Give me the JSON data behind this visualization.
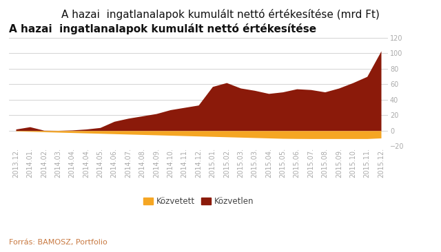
{
  "title_bold": "A hazai  ingatlanalapok kumulált nettó értékesítése",
  "title_normal": " (mrd Ft)",
  "source": "Forrás: BAMOSZ, Portfolio",
  "legend_items": [
    "Közvetett",
    "Közvetlen"
  ],
  "legend_colors": [
    "#f5a623",
    "#8b1a0a"
  ],
  "ylim": [
    -20,
    120
  ],
  "yticks": [
    -20,
    0,
    20,
    40,
    60,
    80,
    100,
    120
  ],
  "background_color": "#ffffff",
  "labels": [
    "2013.12.",
    "2014.01.",
    "2014.02.",
    "2014.03.",
    "2014.04.",
    "2014.04.",
    "2014.05.",
    "2014.06.",
    "2014.07.",
    "2014.08.",
    "2014.09.",
    "2014.10.",
    "2014.11.",
    "2014.12.",
    "2015.01.",
    "2015.02.",
    "2015.03.",
    "2015.03.",
    "2015.04.",
    "2015.05.",
    "2015.06.",
    "2015.07.",
    "2015.08.",
    "2015.09.",
    "2015.10.",
    "2015.11.",
    "2015.12."
  ],
  "kozvetlen": [
    2.0,
    5.0,
    0.5,
    0.3,
    0.8,
    2.0,
    4.0,
    12.0,
    16.0,
    19.0,
    22.0,
    27.0,
    30.0,
    33.0,
    57.0,
    62.0,
    55.0,
    52.0,
    48.0,
    50.0,
    54.0,
    53.0,
    50.0,
    55.0,
    62.0,
    70.0,
    103.0
  ],
  "kozvetett": [
    -0.5,
    -1.0,
    -1.5,
    -2.0,
    -2.5,
    -3.0,
    -3.5,
    -4.0,
    -4.5,
    -5.0,
    -5.5,
    -6.0,
    -6.5,
    -7.0,
    -7.5,
    -8.0,
    -8.5,
    -9.0,
    -9.5,
    -10.0,
    -10.2,
    -10.3,
    -10.3,
    -10.3,
    -10.3,
    -10.3,
    -9.5
  ],
  "grid_color": "#cccccc",
  "tick_color": "#aaaaaa",
  "title_fontsize": 11,
  "tick_fontsize": 7,
  "source_fontsize": 8,
  "legend_fontsize": 8.5
}
